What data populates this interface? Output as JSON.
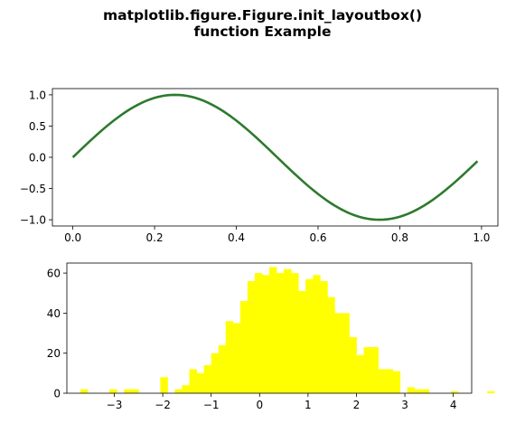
{
  "figure": {
    "title_line1": "matplotlib.figure.Figure.init_layoutbox()",
    "title_line2": "function Example"
  },
  "chart_data": [
    {
      "type": "line",
      "title": "",
      "xlabel": "",
      "ylabel": "",
      "xlim": [
        -0.05,
        1.04
      ],
      "ylim": [
        -1.1,
        1.1
      ],
      "grid": false,
      "series": [
        {
          "color": "#2d7a2d",
          "x": [
            0.0,
            0.01,
            0.02,
            0.03,
            0.04,
            0.05,
            0.06,
            0.07,
            0.08,
            0.09,
            0.1,
            0.11,
            0.12,
            0.13,
            0.14,
            0.15,
            0.16,
            0.17,
            0.18,
            0.19,
            0.2,
            0.21,
            0.22,
            0.23,
            0.24,
            0.25,
            0.26,
            0.27,
            0.28,
            0.29,
            0.3,
            0.31,
            0.32,
            0.33,
            0.34,
            0.35,
            0.36,
            0.37,
            0.38,
            0.39,
            0.4,
            0.41,
            0.42,
            0.43,
            0.44,
            0.45,
            0.46,
            0.47,
            0.48,
            0.49,
            0.5,
            0.51,
            0.52,
            0.53,
            0.54,
            0.55,
            0.56,
            0.57,
            0.58,
            0.59,
            0.6,
            0.61,
            0.62,
            0.63,
            0.64,
            0.65,
            0.66,
            0.67,
            0.68,
            0.69,
            0.7,
            0.71,
            0.72,
            0.73,
            0.74,
            0.75,
            0.76,
            0.77,
            0.78,
            0.79,
            0.8,
            0.81,
            0.82,
            0.83,
            0.84,
            0.85,
            0.86,
            0.87,
            0.88,
            0.89,
            0.9,
            0.91,
            0.92,
            0.93,
            0.94,
            0.95,
            0.96,
            0.97,
            0.98,
            0.99
          ],
          "y": [
            0.0,
            0.063,
            0.125,
            0.187,
            0.249,
            0.309,
            0.368,
            0.426,
            0.482,
            0.536,
            0.588,
            0.637,
            0.685,
            0.729,
            0.771,
            0.809,
            0.844,
            0.876,
            0.905,
            0.93,
            0.951,
            0.969,
            0.982,
            0.992,
            0.998,
            1.0,
            0.998,
            0.992,
            0.982,
            0.969,
            0.951,
            0.93,
            0.905,
            0.876,
            0.844,
            0.809,
            0.771,
            0.729,
            0.685,
            0.637,
            0.588,
            0.536,
            0.482,
            0.426,
            0.368,
            0.309,
            0.249,
            0.187,
            0.125,
            0.063,
            0.0,
            -0.063,
            -0.125,
            -0.187,
            -0.249,
            -0.309,
            -0.368,
            -0.426,
            -0.482,
            -0.536,
            -0.588,
            -0.637,
            -0.685,
            -0.729,
            -0.771,
            -0.809,
            -0.844,
            -0.876,
            -0.905,
            -0.93,
            -0.951,
            -0.969,
            -0.982,
            -0.992,
            -0.998,
            -1.0,
            -0.998,
            -0.992,
            -0.982,
            -0.969,
            -0.951,
            -0.93,
            -0.905,
            -0.876,
            -0.844,
            -0.809,
            -0.771,
            -0.729,
            -0.685,
            -0.637,
            -0.588,
            -0.536,
            -0.482,
            -0.426,
            -0.368,
            -0.309,
            -0.249,
            -0.187,
            -0.125,
            -0.063
          ]
        }
      ],
      "xticks": [
        0.0,
        0.2,
        0.4,
        0.6,
        0.8,
        1.0
      ],
      "xtick_labels": [
        "0.0",
        "0.2",
        "0.4",
        "0.6",
        "0.8",
        "1.0"
      ],
      "yticks": [
        1.0,
        0.5,
        0.0,
        -0.5,
        -1.0
      ],
      "ytick_labels": [
        "1.0",
        "0.5",
        "0.0",
        "−0.5",
        "−1.0"
      ]
    },
    {
      "type": "bar",
      "subtype": "histogram",
      "title": "",
      "xlabel": "",
      "ylabel": "",
      "xlim": [
        -3.98,
        4.38
      ],
      "ylim": [
        0,
        65
      ],
      "grid": false,
      "color": "#ffff00",
      "bin_width": 0.15,
      "bin_start": -3.7,
      "counts": [
        2,
        0,
        0,
        0,
        2,
        0,
        2,
        2,
        0,
        0,
        0,
        8,
        0,
        2,
        4,
        12,
        10,
        14,
        20,
        24,
        36,
        35,
        46,
        56,
        60,
        59,
        63,
        60,
        62,
        60,
        51,
        57,
        59,
        56,
        48,
        40,
        40,
        28,
        19,
        23,
        23,
        12,
        12,
        11,
        0,
        3,
        2,
        2,
        0,
        0,
        0,
        1,
        0,
        0,
        0,
        0,
        1
      ],
      "xticks": [
        -3,
        -2,
        -1,
        0,
        1,
        2,
        3,
        4
      ],
      "xtick_labels": [
        "−3",
        "−2",
        "−1",
        "0",
        "1",
        "2",
        "3",
        "4"
      ],
      "yticks": [
        0,
        20,
        40,
        60
      ],
      "ytick_labels": [
        "0",
        "20",
        "40",
        "60"
      ]
    }
  ]
}
